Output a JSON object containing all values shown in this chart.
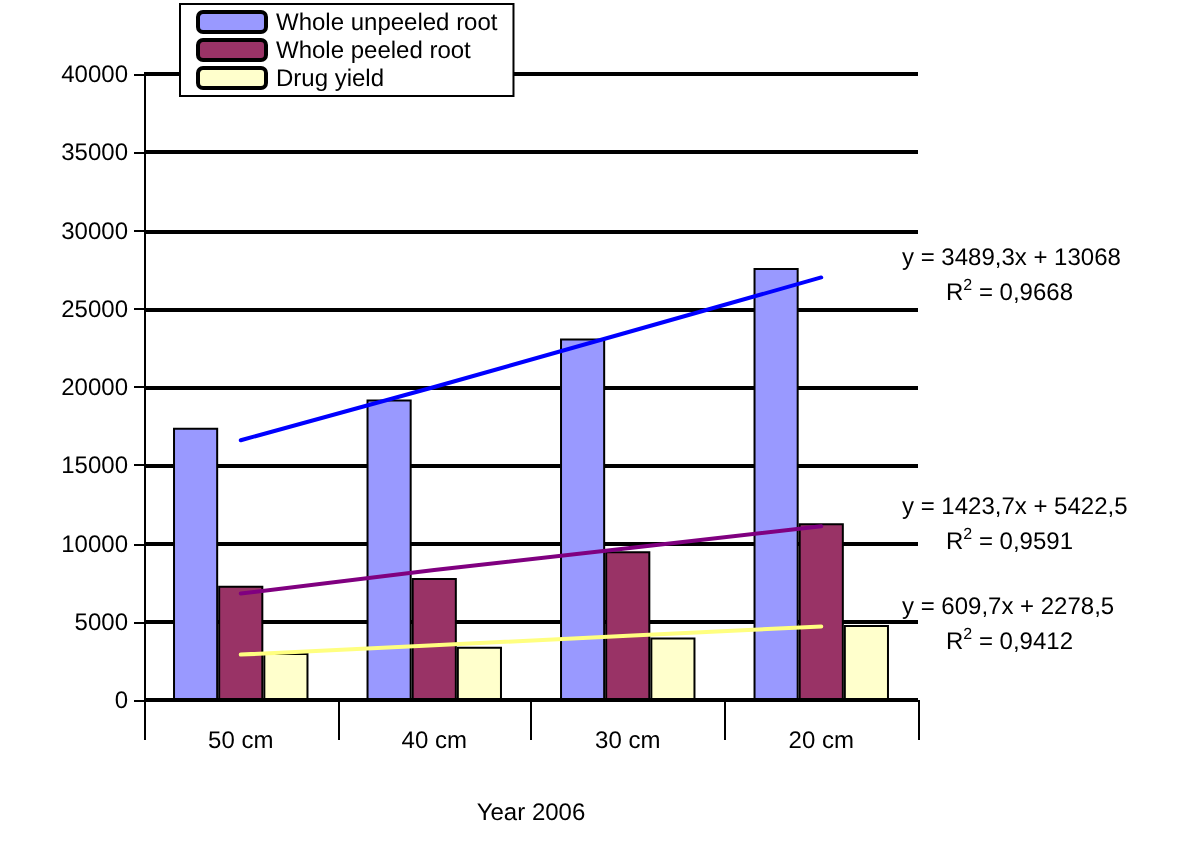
{
  "chart_data": {
    "type": "bar",
    "xlabel": "Year 2006",
    "categories": [
      "50 cm",
      "40 cm",
      "30 cm",
      "20 cm"
    ],
    "series": [
      {
        "name": "Whole unpeeled root",
        "color": "#9999ff",
        "values": [
          17400,
          19200,
          23100,
          27600
        ]
      },
      {
        "name": "Whole peeled root",
        "color": "#993366",
        "values": [
          7300,
          7800,
          9500,
          11300
        ]
      },
      {
        "name": "Drug yield",
        "color": "#ffffcc",
        "values": [
          3000,
          3400,
          4000,
          4800
        ]
      },
      {
        "type": "line",
        "color": "#0000ff",
        "values": [
          16600,
          20000,
          23500,
          27000
        ]
      },
      {
        "type": "line",
        "color": "#800080",
        "values": [
          6800,
          8300,
          9700,
          11100
        ]
      },
      {
        "type": "line",
        "color": "#ffff80",
        "values": [
          2900,
          3500,
          4100,
          4700
        ]
      }
    ],
    "ylim": [
      0,
      40000
    ],
    "yticks": [
      0,
      5000,
      10000,
      15000,
      20000,
      25000,
      30000,
      35000,
      40000
    ],
    "grid": "y",
    "legend": "top",
    "marker": "none",
    "line_style": "solid",
    "annotations": [
      "y = 3489,3x + 13068",
      "R$^{2}$ = 0,9668",
      "y = 1423,7x + 5422,5",
      "R$^{2}$ = 0,9591",
      "y = 609,7x + 2278,5",
      "R$^{2}$ = 0,9412"
    ]
  }
}
